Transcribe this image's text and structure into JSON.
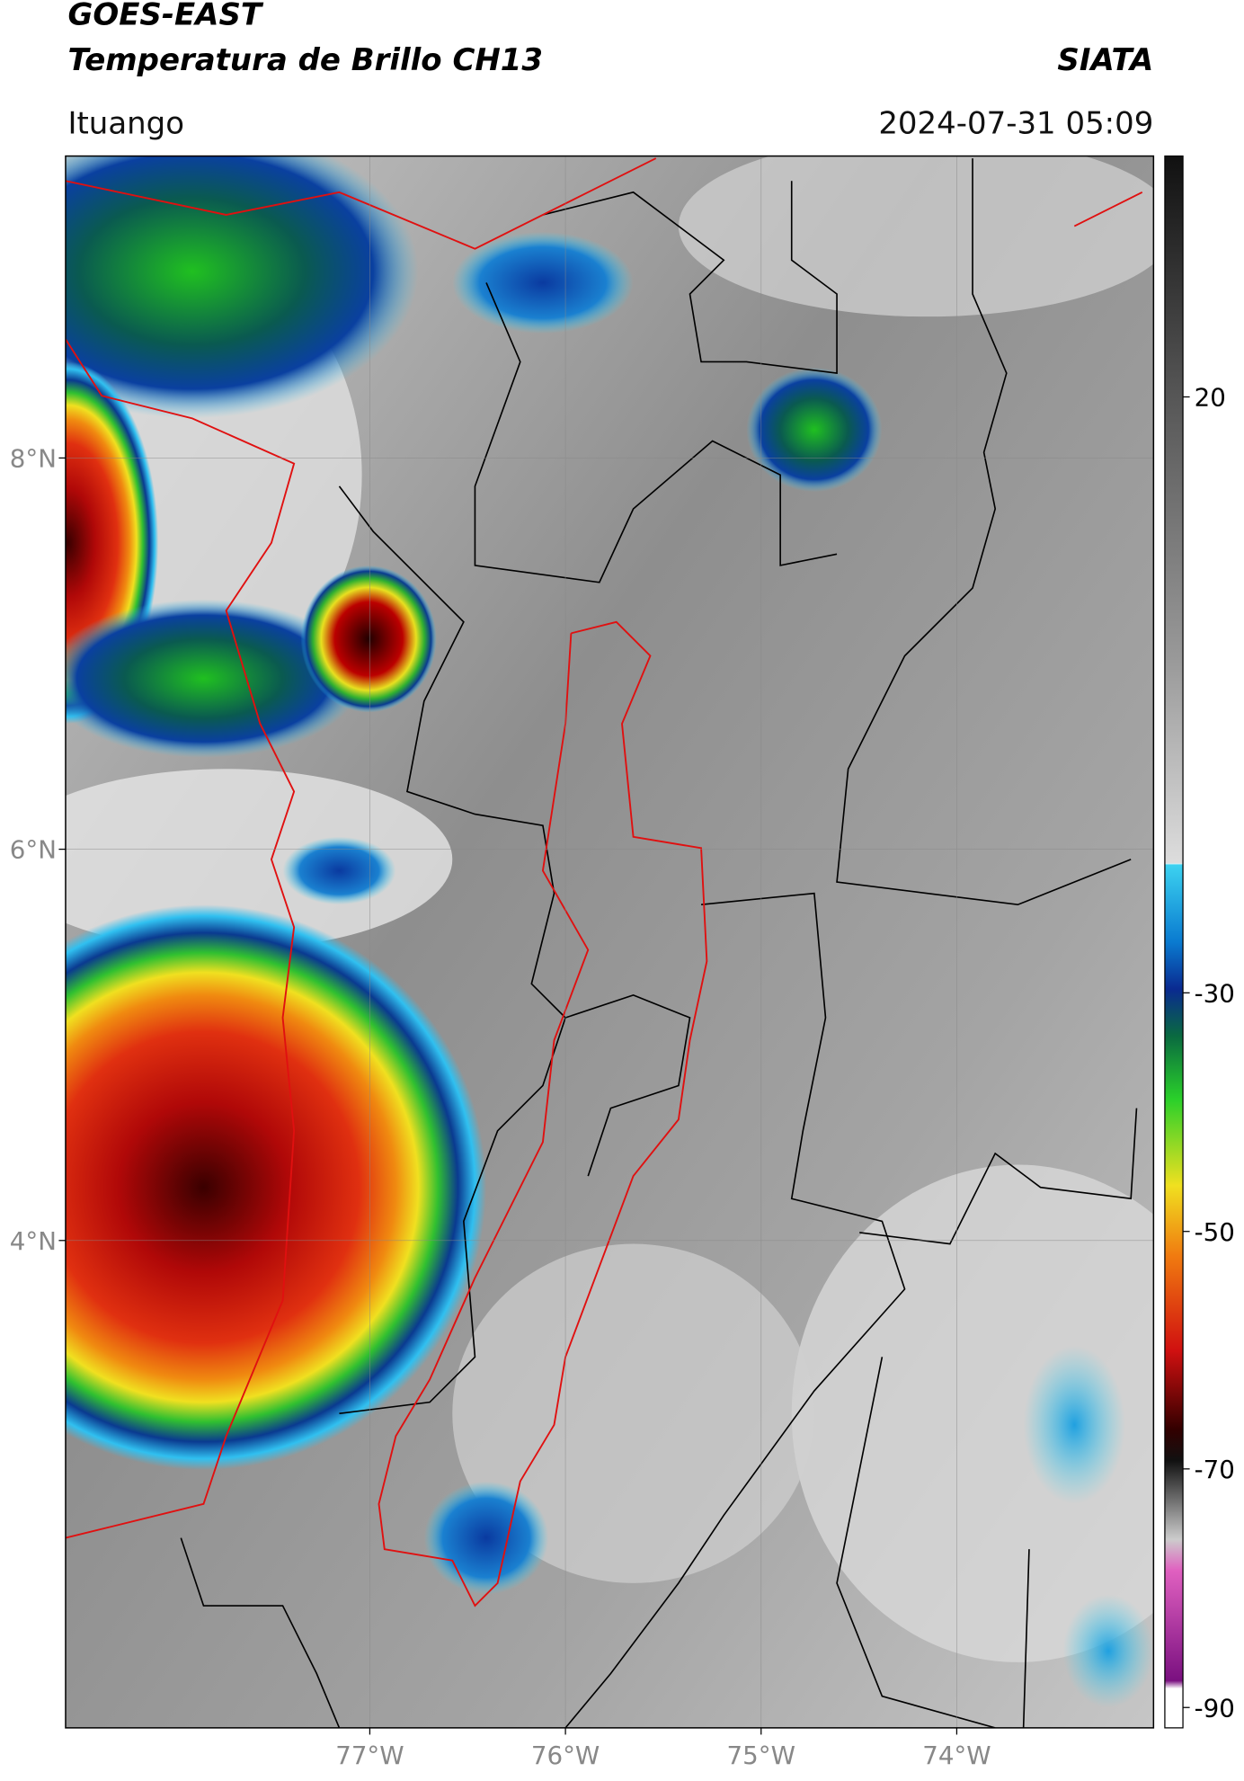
{
  "header": {
    "title": "GOES-EAST",
    "subtitle": "Temperatura de Brillo CH13",
    "source": "SIATA",
    "location": "Ituango",
    "timestamp": "2024-07-31 05:09"
  },
  "map": {
    "lat_labels": [
      "8°N",
      "6°N",
      "4°N"
    ],
    "lon_labels": [
      "77°W",
      "76°W",
      "75°W",
      "74°W"
    ]
  },
  "colorbar": {
    "ticks": [
      20,
      -30,
      -50,
      -70,
      -90
    ]
  }
}
